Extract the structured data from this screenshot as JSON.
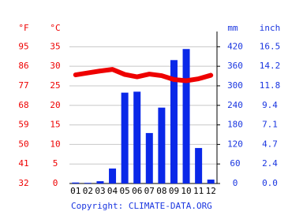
{
  "chart_data": {
    "type": "combo",
    "categories": [
      "01",
      "02",
      "03",
      "04",
      "05",
      "06",
      "07",
      "08",
      "09",
      "10",
      "11",
      "12"
    ],
    "series": [
      {
        "type": "bar",
        "axis": "y2",
        "color": "#0a28e8",
        "values": [
          3,
          2,
          7,
          46,
          279,
          282,
          155,
          233,
          379,
          413,
          109,
          12
        ]
      },
      {
        "type": "line",
        "color": "#ee0000",
        "values": [
          27.8,
          28.3,
          28.8,
          29.2,
          27.9,
          27.3,
          28.0,
          27.6,
          26.6,
          26.3,
          26.8,
          27.7
        ]
      }
    ],
    "y_label": "°C",
    "y_label_alt": "°F",
    "y2_label": "mm",
    "y2_label_alt": "inch",
    "ylim": [
      0,
      38.9
    ],
    "yticks": [
      0,
      5,
      10,
      15,
      20,
      25,
      30,
      35
    ],
    "yticks_alt": [
      {
        "value": 0,
        "label": "32"
      },
      {
        "value": 5,
        "label": "41"
      },
      {
        "value": 10,
        "label": "50"
      },
      {
        "value": 15,
        "label": "59"
      },
      {
        "value": 20,
        "label": "68"
      },
      {
        "value": 25,
        "label": "77"
      },
      {
        "value": 30,
        "label": "86"
      },
      {
        "value": 35,
        "label": "95"
      }
    ],
    "y2lim": [
      0,
      466.8
    ],
    "y2ticks": [
      0,
      60,
      120,
      180,
      240,
      300,
      360,
      420
    ],
    "y2ticks_alt": [
      {
        "value": 0,
        "label": "0.0"
      },
      {
        "value": 60,
        "label": "2.4"
      },
      {
        "value": 120,
        "label": "4.7"
      },
      {
        "value": 180,
        "label": "7.1"
      },
      {
        "value": 240,
        "label": "9.4"
      },
      {
        "value": 300,
        "label": "11.8"
      },
      {
        "value": 360,
        "label": "14.2"
      },
      {
        "value": 420,
        "label": "16.5"
      }
    ],
    "grid": true,
    "source": "Copyright: CLIMATE-DATA.ORG"
  }
}
